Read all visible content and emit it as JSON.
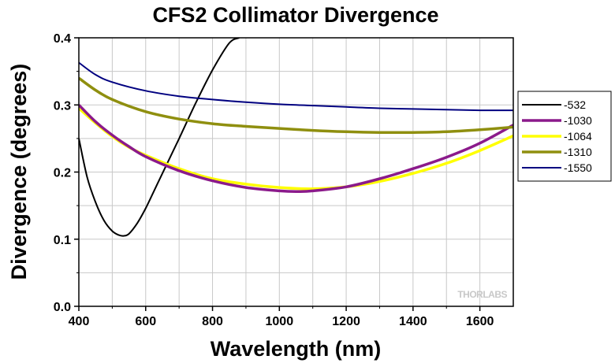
{
  "chart_data": {
    "type": "line",
    "title": "CFS2 Collimator Divergence",
    "xlabel": "Wavelength (nm)",
    "ylabel": "Divergence (degrees)",
    "xlim": [
      400,
      1700
    ],
    "ylim": [
      0.0,
      0.4
    ],
    "x_ticks": [
      400,
      600,
      800,
      1000,
      1200,
      1400,
      1600
    ],
    "y_ticks": [
      0.0,
      0.1,
      0.2,
      0.3,
      0.4
    ],
    "y_tick_labels": [
      "0.0",
      "0.1",
      "0.2",
      "0.3",
      "0.4"
    ],
    "grid": true,
    "legend_position": "right",
    "watermark": "THORLABS",
    "series": [
      {
        "name": "-532",
        "color": "#000000",
        "x": [
          400,
          425,
          450,
          475,
          500,
          520,
          535,
          550,
          575,
          600,
          625,
          650,
          700,
          750,
          800,
          850,
          880
        ],
        "y": [
          0.25,
          0.192,
          0.155,
          0.128,
          0.112,
          0.106,
          0.105,
          0.108,
          0.124,
          0.146,
          0.172,
          0.198,
          0.25,
          0.303,
          0.352,
          0.392,
          0.4
        ]
      },
      {
        "name": "-1030",
        "color": "#8b1a8b",
        "x": [
          400,
          450,
          500,
          550,
          600,
          700,
          800,
          900,
          1000,
          1050,
          1100,
          1200,
          1300,
          1400,
          1500,
          1600,
          1700
        ],
        "y": [
          0.3,
          0.275,
          0.255,
          0.238,
          0.223,
          0.202,
          0.187,
          0.177,
          0.172,
          0.171,
          0.172,
          0.178,
          0.19,
          0.205,
          0.222,
          0.243,
          0.27
        ]
      },
      {
        "name": "-1064",
        "color": "#ffff00",
        "x": [
          400,
          450,
          500,
          550,
          600,
          700,
          800,
          900,
          1000,
          1100,
          1200,
          1300,
          1400,
          1500,
          1600,
          1700
        ],
        "y": [
          0.295,
          0.273,
          0.253,
          0.237,
          0.225,
          0.205,
          0.19,
          0.182,
          0.177,
          0.175,
          0.178,
          0.186,
          0.198,
          0.213,
          0.232,
          0.254
        ]
      },
      {
        "name": "-1310",
        "color": "#8f8f0f",
        "x": [
          400,
          450,
          500,
          600,
          700,
          800,
          900,
          1000,
          1100,
          1200,
          1300,
          1400,
          1500,
          1600,
          1700
        ],
        "y": [
          0.34,
          0.322,
          0.308,
          0.29,
          0.279,
          0.272,
          0.268,
          0.265,
          0.262,
          0.26,
          0.259,
          0.259,
          0.26,
          0.263,
          0.267
        ]
      },
      {
        "name": "-1550",
        "color": "#000080",
        "x": [
          400,
          450,
          500,
          600,
          700,
          800,
          900,
          1000,
          1100,
          1200,
          1300,
          1400,
          1500,
          1600,
          1700
        ],
        "y": [
          0.363,
          0.345,
          0.334,
          0.321,
          0.313,
          0.308,
          0.304,
          0.301,
          0.299,
          0.297,
          0.295,
          0.294,
          0.293,
          0.292,
          0.292
        ]
      }
    ]
  }
}
